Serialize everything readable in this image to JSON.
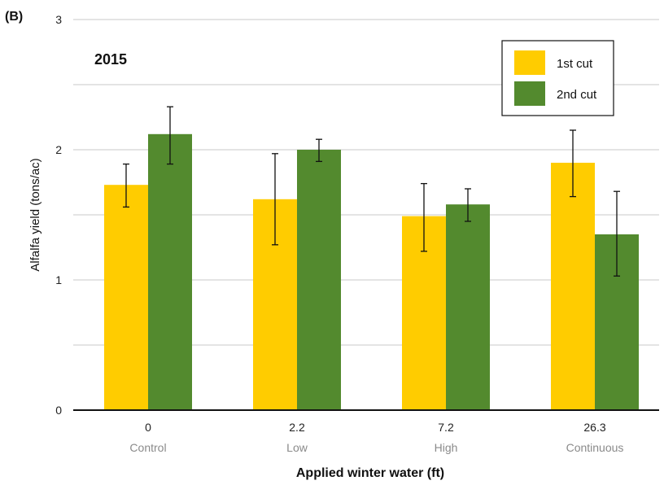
{
  "panel_label": "(B)",
  "chart_data": {
    "type": "bar",
    "title": "2015",
    "xlabel": "Applied winter water (ft)",
    "ylabel": "Alfalfa yield (tons/ac)",
    "ylim": [
      0,
      3
    ],
    "yticks": [
      "0",
      "1",
      "2",
      "3"
    ],
    "grid": true,
    "legend_position": "top-right",
    "categories": [
      "0",
      "2.2",
      "7.2",
      "26.3"
    ],
    "category_sublabels": [
      "Control",
      "Low",
      "High",
      "Continuous"
    ],
    "series": [
      {
        "name": "1st cut",
        "color": "#ffcc00",
        "values": [
          1.73,
          1.62,
          1.49,
          1.9
        ],
        "error_low": [
          1.56,
          1.27,
          1.22,
          1.64
        ],
        "error_high": [
          1.89,
          1.97,
          1.74,
          2.15
        ]
      },
      {
        "name": "2nd cut",
        "color": "#538a2e",
        "values": [
          2.12,
          2.0,
          1.58,
          1.35
        ],
        "error_low": [
          1.89,
          1.91,
          1.45,
          1.03
        ],
        "error_high": [
          2.33,
          2.08,
          1.7,
          1.68
        ]
      }
    ]
  }
}
